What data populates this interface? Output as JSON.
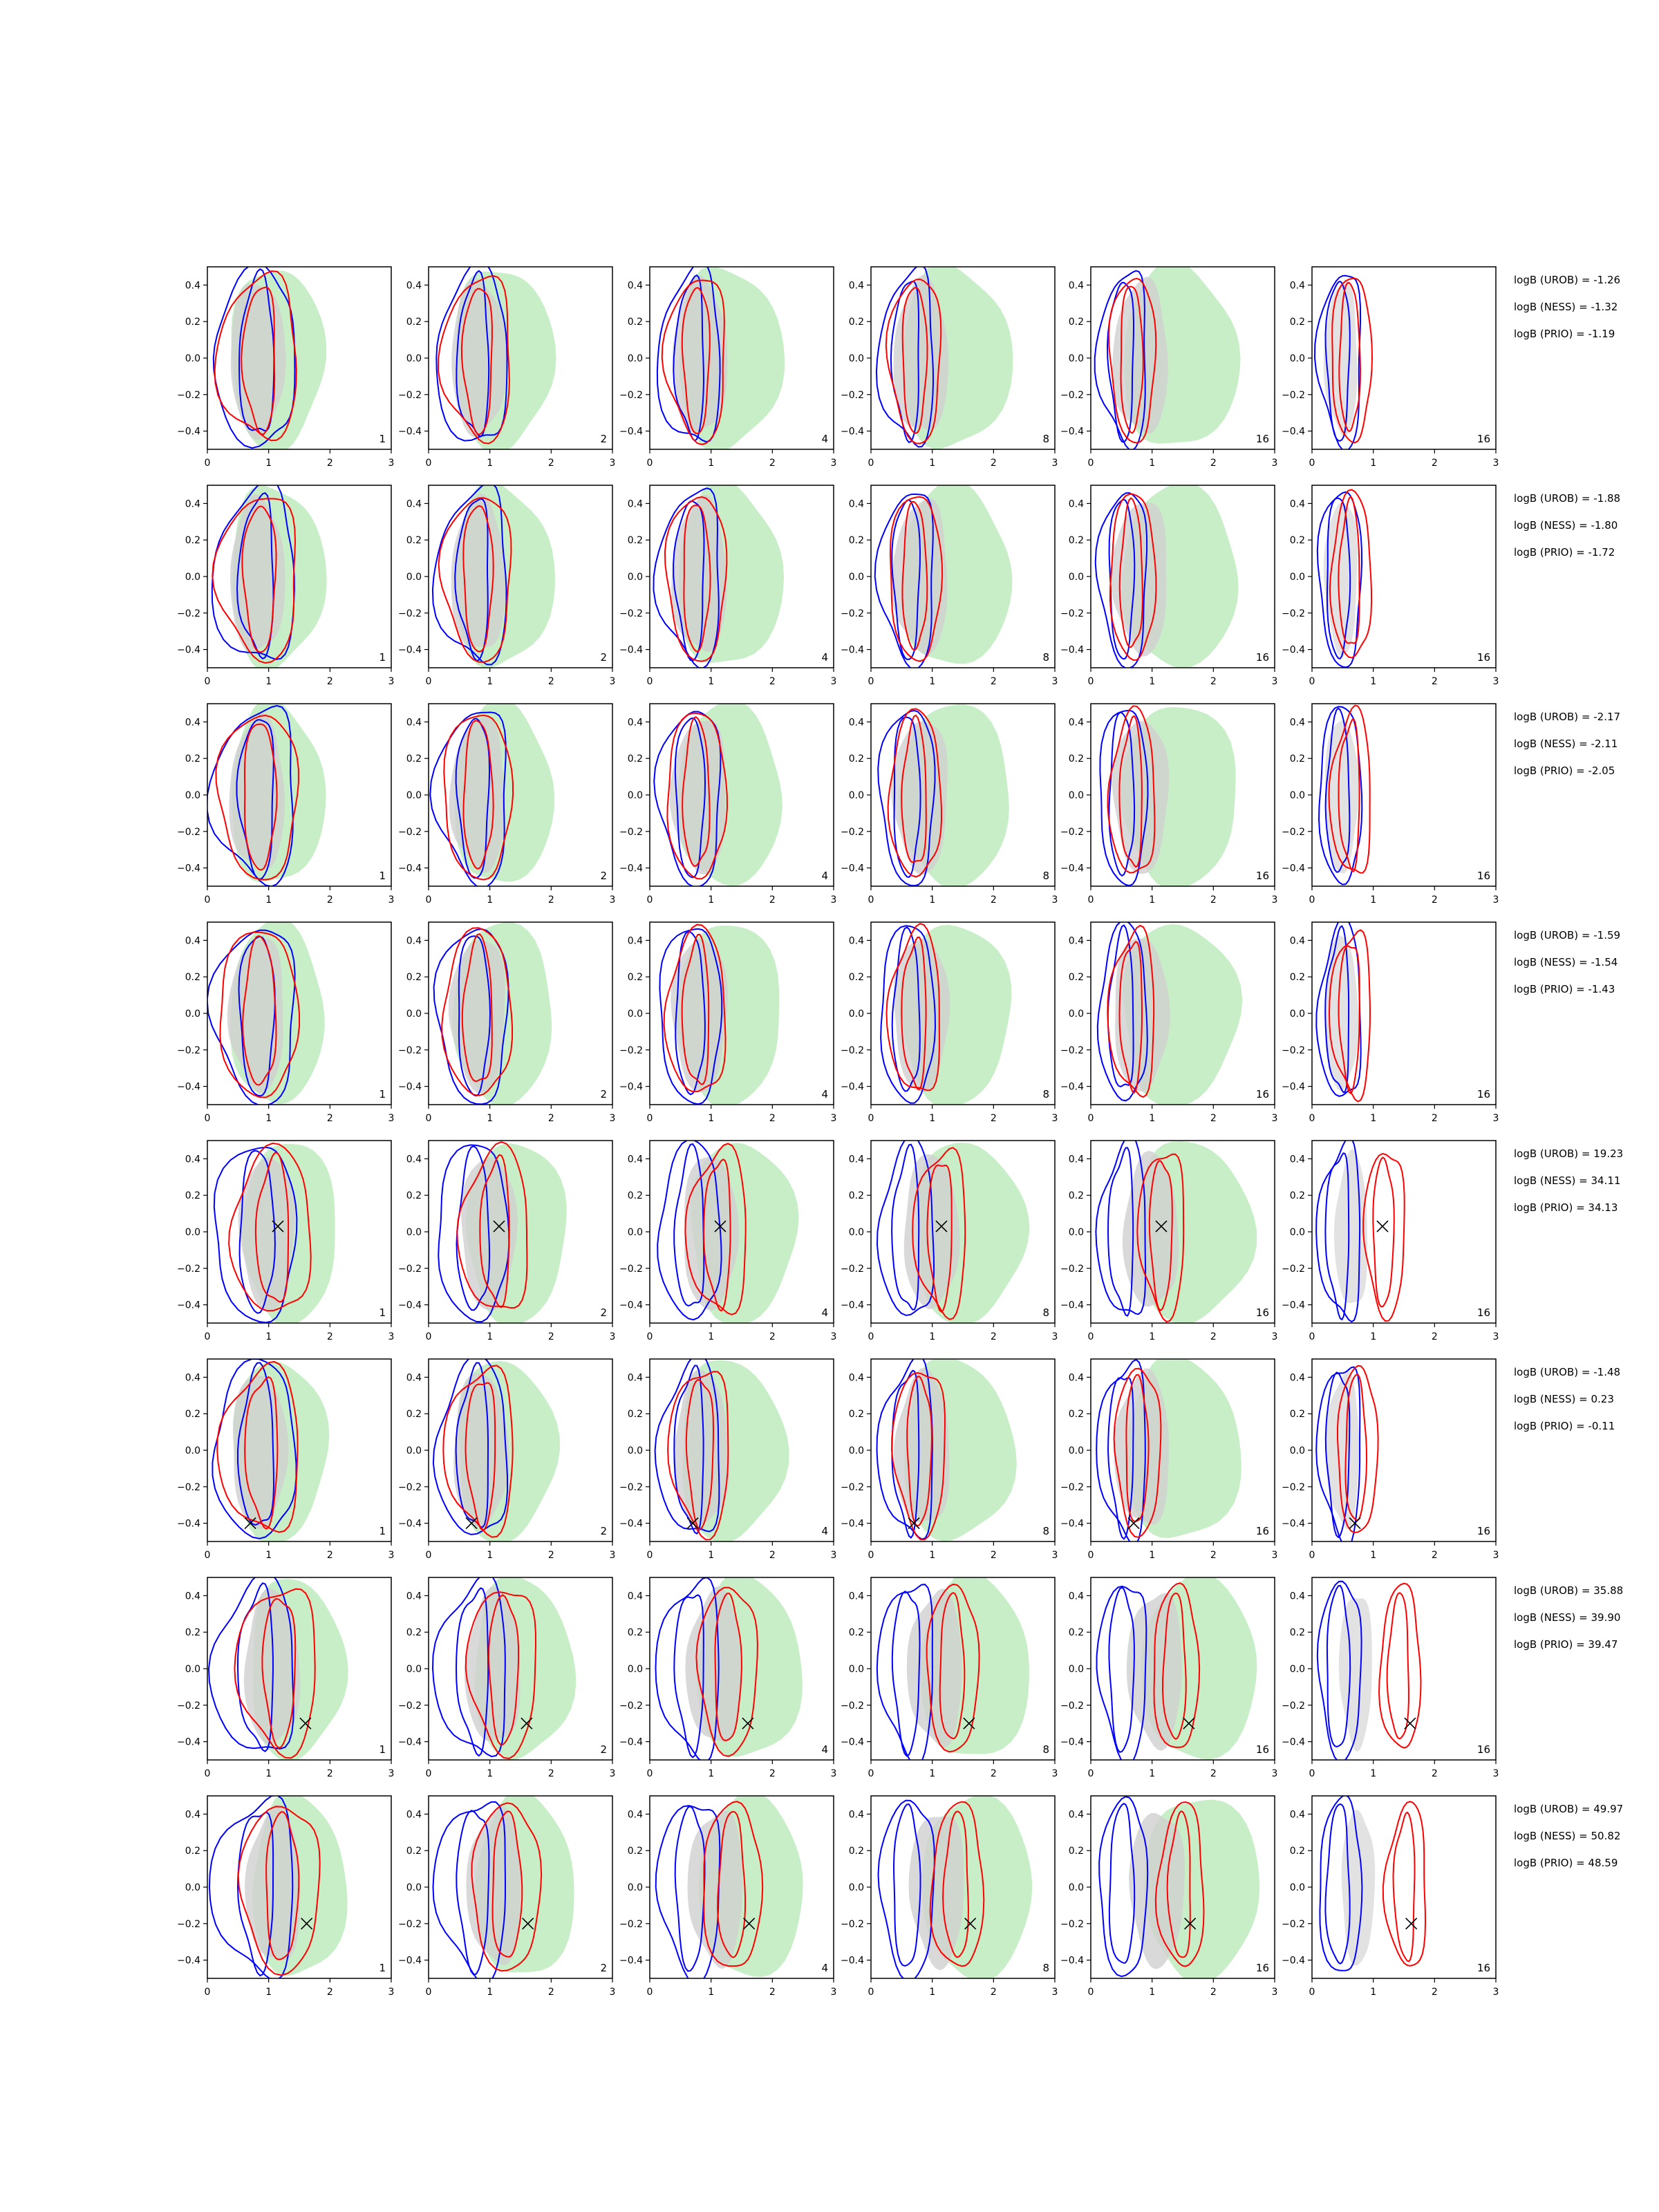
{
  "chart_data": {
    "type": "contour-grid",
    "title": "",
    "xlabel": "",
    "ylabel": "",
    "xlim": [
      0,
      3
    ],
    "ylim": [
      -0.5,
      0.5
    ],
    "xticks": [
      "0",
      "1",
      "2",
      "3"
    ],
    "yticks": [
      "0.4",
      "0.2",
      "0.0",
      "−0.2",
      "−0.4"
    ],
    "grid": false,
    "colors": {
      "prior_fill": "#c7eec7",
      "posterior_fill": "#cfcfcf",
      "line_a": "#0000ff",
      "line_b": "#ff0000",
      "marker": "#000000"
    },
    "column_labels": [
      "1",
      "2",
      "4",
      "8",
      "16",
      "16"
    ],
    "rows": [
      {
        "annotations": [
          "logB (UROB) = -1.26",
          "logB (NESS) = -1.32",
          "logB (PRIO) = -1.19"
        ],
        "marker": null,
        "shift": 0.0
      },
      {
        "annotations": [
          "logB (UROB) = -1.88",
          "logB (NESS) = -1.80",
          "logB (PRIO) = -1.72"
        ],
        "marker": null,
        "shift": 0.0
      },
      {
        "annotations": [
          "logB (UROB) = -2.17",
          "logB (NESS) = -2.11",
          "logB (PRIO) = -2.05"
        ],
        "marker": null,
        "shift": 0.0
      },
      {
        "annotations": [
          "logB (UROB) = -1.59",
          "logB (NESS) = -1.54",
          "logB (PRIO) = -1.43"
        ],
        "marker": null,
        "shift": 0.0
      },
      {
        "annotations": [
          "logB (UROB) = 19.23",
          "logB (NESS) = 34.11",
          "logB (PRIO) = 34.13"
        ],
        "marker": [
          1.15,
          0.03
        ],
        "shift": 0.55
      },
      {
        "annotations": [
          "logB (UROB) = -1.48",
          "logB (NESS) = 0.23",
          "logB (PRIO) = -0.11"
        ],
        "marker": [
          0.7,
          -0.4
        ],
        "shift": 0.1
      },
      {
        "annotations": [
          "logB (UROB) = 35.88",
          "logB (NESS) = 39.90",
          "logB (PRIO) = 39.47"
        ],
        "marker": [
          1.6,
          -0.3
        ],
        "shift": 0.8
      },
      {
        "annotations": [
          "logB (UROB) = 49.97",
          "logB (NESS) = 50.82",
          "logB (PRIO) = 48.59"
        ],
        "marker": [
          1.62,
          -0.2
        ],
        "shift": 0.9
      }
    ]
  }
}
